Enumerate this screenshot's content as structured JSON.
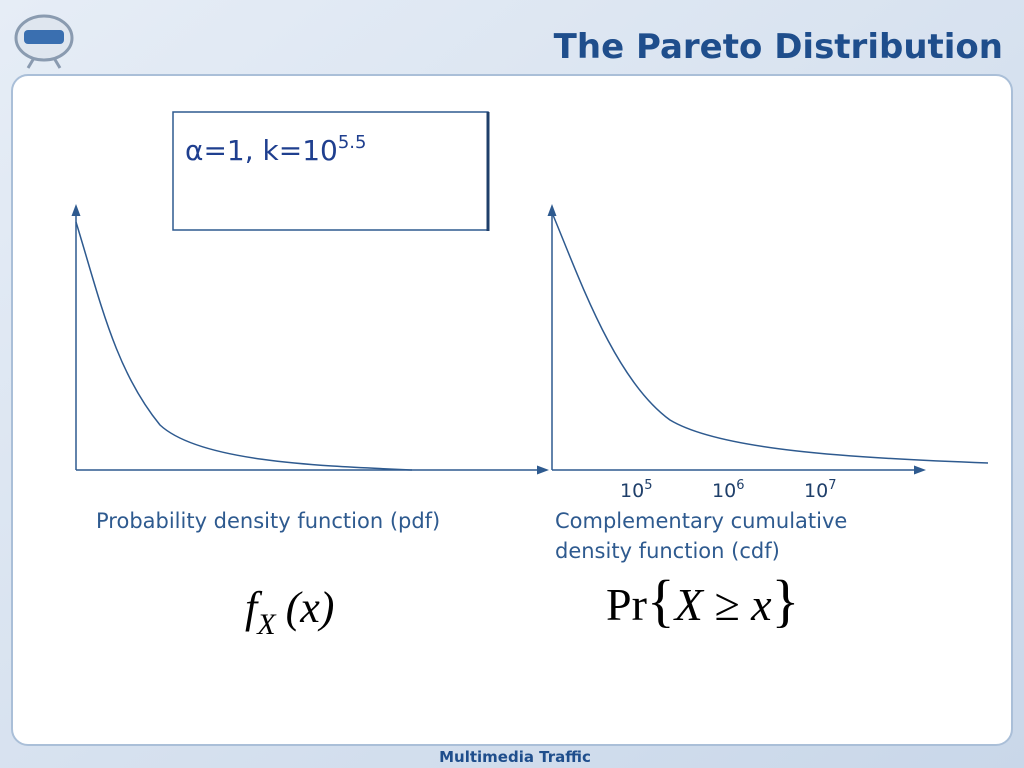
{
  "header": {
    "title": "The Pareto Distribution"
  },
  "parameter_box": {
    "text": "α=1, k=10",
    "exponent": "5.5"
  },
  "pdf_panel": {
    "caption": "Probability density function (pdf)",
    "formula": {
      "function": "f",
      "subscript": "X",
      "argument": "(x)"
    }
  },
  "ccdf_panel": {
    "x_labels": [
      {
        "base": "10",
        "exponent": "5"
      },
      {
        "base": "10",
        "exponent": "6"
      },
      {
        "base": "10",
        "exponent": "7"
      }
    ],
    "caption_lines": [
      "Complementary cumulative",
      "density function (cdf)"
    ],
    "formula": {
      "operator": "Pr",
      "open": "{",
      "body": "X ≥ x",
      "close": "}"
    }
  },
  "footer": {
    "text": "Multimedia Traffic"
  }
}
